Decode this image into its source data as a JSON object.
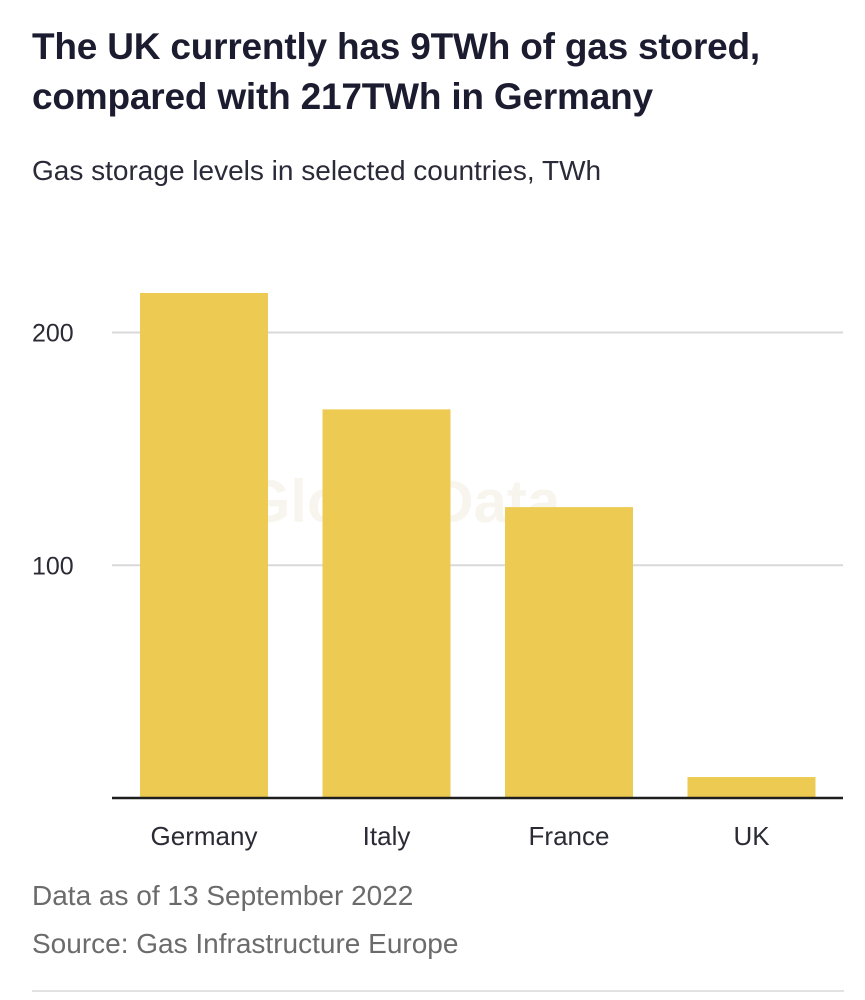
{
  "header": {
    "title": "The UK currently has 9TWh of gas stored, compared with 217TWh in Germany",
    "subtitle": "Gas storage levels in selected countries, TWh"
  },
  "footer": {
    "date_note": "Data as of 13 September 2022",
    "source": "Source: Gas Infrastructure Europe"
  },
  "watermark": "GlobalData",
  "colors": {
    "bar": "#edcb52",
    "axis": "#1e1e1e",
    "grid": "#d9d9d9"
  },
  "chart_data": {
    "type": "bar",
    "title": "The UK currently has 9TWh of gas stored, compared with 217TWh in Germany",
    "subtitle": "Gas storage levels in selected countries, TWh",
    "categories": [
      "Germany",
      "Italy",
      "France",
      "UK"
    ],
    "values": [
      217,
      167,
      125,
      9
    ],
    "xlabel": "",
    "ylabel": "TWh",
    "ylim": [
      0,
      217
    ],
    "yticks": [
      100,
      200
    ],
    "grid": true,
    "legend": "none"
  }
}
